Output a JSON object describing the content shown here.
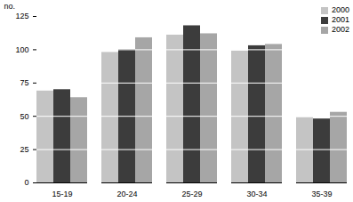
{
  "chart_data": {
    "type": "bar",
    "y_label": "no.",
    "categories": [
      "15-19",
      "20-24",
      "25-29",
      "30-34",
      "35-39"
    ],
    "series": [
      {
        "name": "2000",
        "color": "#c4c4c4",
        "values": [
          69,
          98,
          111,
          99,
          49
        ]
      },
      {
        "name": "2001",
        "color": "#3c3c3c",
        "values": [
          70,
          100,
          118,
          103,
          48
        ]
      },
      {
        "name": "2002",
        "color": "#a6a6a6",
        "values": [
          64,
          109,
          112,
          104,
          53
        ]
      }
    ],
    "ylim": [
      0,
      125
    ],
    "yticks": [
      0,
      25,
      50,
      75,
      100,
      125
    ],
    "grid": true,
    "legend": "top-right"
  }
}
